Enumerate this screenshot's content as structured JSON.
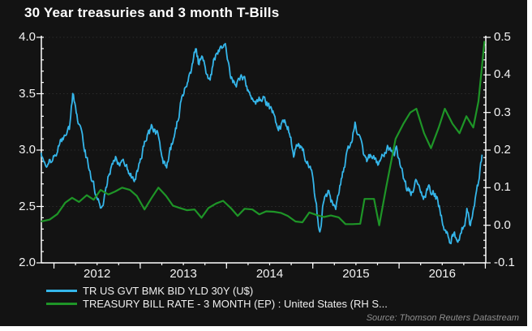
{
  "title": "30 Year treasuries and 3 month T-Bills",
  "source": "Source: Thomson Reuters Datastream",
  "colors": {
    "page_margin": "#ffffff",
    "chart_background": "#131313",
    "title_text": "#ffffff",
    "axis": "#ffffff",
    "gridline": "#2b2b2b",
    "blue_series": "#35b6ea",
    "green_series": "#1e9527",
    "tick_label_text": "#f2f2f2",
    "source_text": "#8f8f8f"
  },
  "chart_data": {
    "type": "line",
    "title": "30 Year treasuries and 3 month T-Bills",
    "grid": "dotted-horizontal-at-left-axis-majors",
    "legend_position": "bottom-left",
    "x_axis": {
      "start": 2011.854,
      "end": 2017.005,
      "year_labels": [
        "2012",
        "2013",
        "2014",
        "2015",
        "2016"
      ],
      "year_tick_values": [
        2012,
        2013,
        2014,
        2015,
        2016,
        2017
      ],
      "minor_tick_step_years": 0.25
    },
    "left_axis": {
      "range": [
        2.0,
        4.0
      ],
      "tick_values": [
        4.0,
        3.5,
        3.0,
        2.5,
        2.0
      ],
      "tick_labels": [
        "4.0",
        "3.5",
        "3.0",
        "2.5",
        "2.0"
      ],
      "minor_step": 0.1
    },
    "right_axis": {
      "range": [
        -0.1,
        0.5
      ],
      "tick_values": [
        0.5,
        0.4,
        0.3,
        0.2,
        0.1,
        0.0,
        -0.1
      ],
      "tick_labels": [
        "0.5",
        "0.4",
        "0.3",
        "0.2",
        "0.1",
        "0.0",
        "-0.1"
      ],
      "minor_step": 0.02
    },
    "series": [
      {
        "name": "TR US GVT BMK BID YLD 30Y (U$)",
        "axis": "left",
        "color": "#35b6ea",
        "style": "daily-volatile",
        "points": [
          [
            2011.85,
            2.97
          ],
          [
            2011.92,
            2.88
          ],
          [
            2011.99,
            2.92
          ],
          [
            2012.06,
            3.05
          ],
          [
            2012.13,
            3.13
          ],
          [
            2012.18,
            3.2
          ],
          [
            2012.22,
            3.49
          ],
          [
            2012.27,
            3.3
          ],
          [
            2012.31,
            3.18
          ],
          [
            2012.38,
            2.92
          ],
          [
            2012.46,
            2.7
          ],
          [
            2012.5,
            2.55
          ],
          [
            2012.56,
            2.47
          ],
          [
            2012.63,
            2.76
          ],
          [
            2012.71,
            2.93
          ],
          [
            2012.76,
            2.86
          ],
          [
            2012.8,
            2.9
          ],
          [
            2012.87,
            2.8
          ],
          [
            2012.93,
            2.72
          ],
          [
            2012.99,
            2.88
          ],
          [
            2013.05,
            3.08
          ],
          [
            2013.13,
            3.19
          ],
          [
            2013.21,
            3.13
          ],
          [
            2013.25,
            2.95
          ],
          [
            2013.3,
            2.84
          ],
          [
            2013.37,
            3.05
          ],
          [
            2013.42,
            3.2
          ],
          [
            2013.47,
            3.42
          ],
          [
            2013.54,
            3.6
          ],
          [
            2013.59,
            3.72
          ],
          [
            2013.64,
            3.91
          ],
          [
            2013.68,
            3.76
          ],
          [
            2013.72,
            3.86
          ],
          [
            2013.8,
            3.59
          ],
          [
            2013.86,
            3.8
          ],
          [
            2013.92,
            3.88
          ],
          [
            2013.99,
            3.95
          ],
          [
            2014.05,
            3.66
          ],
          [
            2014.1,
            3.56
          ],
          [
            2014.16,
            3.66
          ],
          [
            2014.21,
            3.6
          ],
          [
            2014.29,
            3.46
          ],
          [
            2014.35,
            3.42
          ],
          [
            2014.42,
            3.46
          ],
          [
            2014.48,
            3.4
          ],
          [
            2014.54,
            3.34
          ],
          [
            2014.6,
            3.2
          ],
          [
            2014.66,
            3.26
          ],
          [
            2014.72,
            3.18
          ],
          [
            2014.78,
            2.96
          ],
          [
            2014.82,
            3.08
          ],
          [
            2014.88,
            3.0
          ],
          [
            2014.94,
            2.88
          ],
          [
            2014.99,
            2.78
          ],
          [
            2015.04,
            2.52
          ],
          [
            2015.08,
            2.24
          ],
          [
            2015.13,
            2.58
          ],
          [
            2015.18,
            2.64
          ],
          [
            2015.22,
            2.54
          ],
          [
            2015.27,
            2.5
          ],
          [
            2015.32,
            2.68
          ],
          [
            2015.38,
            2.92
          ],
          [
            2015.44,
            3.08
          ],
          [
            2015.49,
            3.22
          ],
          [
            2015.53,
            3.12
          ],
          [
            2015.58,
            2.98
          ],
          [
            2015.63,
            2.88
          ],
          [
            2015.68,
            2.96
          ],
          [
            2015.73,
            2.92
          ],
          [
            2015.78,
            2.88
          ],
          [
            2015.83,
            2.98
          ],
          [
            2015.87,
            3.06
          ],
          [
            2015.92,
            2.96
          ],
          [
            2015.97,
            2.99
          ],
          [
            2016.03,
            2.82
          ],
          [
            2016.09,
            2.64
          ],
          [
            2016.14,
            2.62
          ],
          [
            2016.19,
            2.7
          ],
          [
            2016.24,
            2.62
          ],
          [
            2016.29,
            2.58
          ],
          [
            2016.34,
            2.66
          ],
          [
            2016.4,
            2.62
          ],
          [
            2016.45,
            2.55
          ],
          [
            2016.49,
            2.42
          ],
          [
            2016.53,
            2.26
          ],
          [
            2016.56,
            2.3
          ],
          [
            2016.59,
            2.16
          ],
          [
            2016.63,
            2.26
          ],
          [
            2016.68,
            2.22
          ],
          [
            2016.72,
            2.28
          ],
          [
            2016.76,
            2.34
          ],
          [
            2016.79,
            2.48
          ],
          [
            2016.82,
            2.34
          ],
          [
            2016.85,
            2.46
          ],
          [
            2016.88,
            2.58
          ],
          [
            2016.92,
            2.7
          ],
          [
            2016.95,
            2.88
          ],
          [
            2016.97,
            2.99
          ]
        ]
      },
      {
        "name": "TREASURY BILL RATE - 3 MONTH (EP) : United States (RH S...",
        "axis": "right",
        "color": "#1e9527",
        "style": "monthly-smooth",
        "points": [
          [
            2011.85,
            0.01
          ],
          [
            2011.95,
            0.015
          ],
          [
            2012.04,
            0.03
          ],
          [
            2012.13,
            0.06
          ],
          [
            2012.21,
            0.073
          ],
          [
            2012.29,
            0.062
          ],
          [
            2012.38,
            0.08
          ],
          [
            2012.46,
            0.068
          ],
          [
            2012.54,
            0.094
          ],
          [
            2012.63,
            0.082
          ],
          [
            2012.71,
            0.09
          ],
          [
            2012.79,
            0.1
          ],
          [
            2012.88,
            0.094
          ],
          [
            2012.96,
            0.078
          ],
          [
            2013.05,
            0.042
          ],
          [
            2013.13,
            0.072
          ],
          [
            2013.21,
            0.1
          ],
          [
            2013.3,
            0.078
          ],
          [
            2013.38,
            0.052
          ],
          [
            2013.46,
            0.046
          ],
          [
            2013.54,
            0.04
          ],
          [
            2013.63,
            0.042
          ],
          [
            2013.71,
            0.02
          ],
          [
            2013.79,
            0.046
          ],
          [
            2013.88,
            0.058
          ],
          [
            2013.96,
            0.065
          ],
          [
            2014.05,
            0.046
          ],
          [
            2014.13,
            0.025
          ],
          [
            2014.21,
            0.044
          ],
          [
            2014.3,
            0.042
          ],
          [
            2014.38,
            0.029
          ],
          [
            2014.46,
            0.037
          ],
          [
            2014.55,
            0.036
          ],
          [
            2014.63,
            0.033
          ],
          [
            2014.71,
            0.025
          ],
          [
            2014.8,
            0.01
          ],
          [
            2014.88,
            0.008
          ],
          [
            2014.96,
            0.034
          ],
          [
            2015.05,
            0.027
          ],
          [
            2015.13,
            0.022
          ],
          [
            2015.21,
            0.026
          ],
          [
            2015.3,
            0.021
          ],
          [
            2015.38,
            0.003
          ],
          [
            2015.46,
            0.003
          ],
          [
            2015.55,
            0.004
          ],
          [
            2015.6,
            0.07
          ],
          [
            2015.71,
            0.07
          ],
          [
            2015.77,
            0.0
          ],
          [
            2015.85,
            0.1
          ],
          [
            2015.96,
            0.23
          ],
          [
            2016.05,
            0.27
          ],
          [
            2016.13,
            0.3
          ],
          [
            2016.2,
            0.31
          ],
          [
            2016.29,
            0.245
          ],
          [
            2016.37,
            0.205
          ],
          [
            2016.46,
            0.26
          ],
          [
            2016.53,
            0.31
          ],
          [
            2016.62,
            0.27
          ],
          [
            2016.7,
            0.245
          ],
          [
            2016.78,
            0.29
          ],
          [
            2016.86,
            0.26
          ],
          [
            2016.92,
            0.33
          ],
          [
            2016.99,
            0.49
          ]
        ]
      }
    ]
  }
}
